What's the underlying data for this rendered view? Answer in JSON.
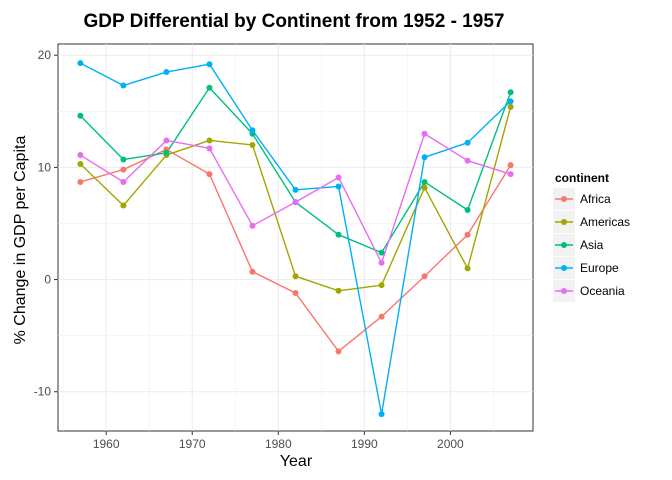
{
  "chart_data": {
    "type": "line",
    "title": "GDP Differential by Continent from 1952 - 1957",
    "xlabel": "Year",
    "ylabel": "% Change in GDP per Capita",
    "x": [
      1957,
      1962,
      1967,
      1972,
      1977,
      1982,
      1987,
      1992,
      1997,
      2002,
      2007
    ],
    "xlim": [
      1954.4,
      2009.6
    ],
    "ylim": [
      -13.5,
      21.0
    ],
    "xticks": [
      1960,
      1970,
      1980,
      1990,
      2000
    ],
    "xtick_labels": [
      "1960",
      "1970",
      "1980",
      "1990",
      "2000"
    ],
    "yticks": [
      -10,
      0,
      10,
      20
    ],
    "ytick_labels": [
      "-10",
      "0",
      "10",
      "20"
    ],
    "grid": true,
    "legend_title": "continent",
    "legend_position": "right",
    "series": [
      {
        "name": "Africa",
        "color": "#F8766D",
        "values": [
          8.7,
          9.8,
          11.6,
          9.4,
          0.7,
          -1.2,
          -6.4,
          -3.3,
          0.3,
          4.0,
          10.2
        ]
      },
      {
        "name": "Americas",
        "color": "#A3A500",
        "values": [
          10.3,
          6.6,
          11.1,
          12.4,
          12.0,
          0.3,
          -1.0,
          -0.5,
          8.2,
          1.0,
          15.4
        ]
      },
      {
        "name": "Asia",
        "color": "#00BF7D",
        "values": [
          14.6,
          10.7,
          11.3,
          17.1,
          13.0,
          6.9,
          4.0,
          2.4,
          8.7,
          6.2,
          16.7
        ]
      },
      {
        "name": "Europe",
        "color": "#00B0F6",
        "values": [
          19.3,
          17.3,
          18.5,
          19.2,
          13.3,
          8.0,
          8.3,
          -12.0,
          10.9,
          12.2,
          15.9
        ]
      },
      {
        "name": "Oceania",
        "color": "#E76BF3",
        "values": [
          11.1,
          8.7,
          12.4,
          11.7,
          4.8,
          6.9,
          9.1,
          1.5,
          13.0,
          10.6,
          9.4
        ]
      }
    ]
  }
}
